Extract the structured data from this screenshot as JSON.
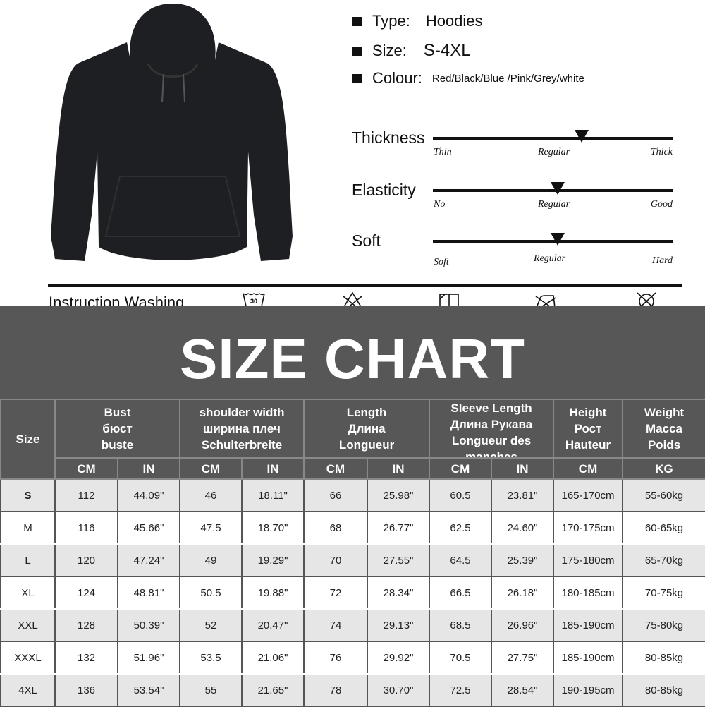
{
  "product": {
    "image": "black-hoodie"
  },
  "specs": [
    {
      "label": "Type:",
      "value": "Hoodies"
    },
    {
      "label": "Size:",
      "value": "S-4XL"
    },
    {
      "label": "Colour:",
      "value": "Red/Black/Blue /Pink/Grey/white"
    }
  ],
  "ratings": [
    {
      "label": "Thickness",
      "low": "Thin",
      "mid": "Regular",
      "high": "Thick",
      "level_percent": 62
    },
    {
      "label": "Elasticity",
      "low": "No",
      "mid": "Regular",
      "high": "Good",
      "level_percent": 52
    },
    {
      "label": "Soft",
      "low": "Soft",
      "mid": "Regular",
      "high": "Hard",
      "level_percent": 52
    }
  ],
  "washing": {
    "label": "Instruction Washing",
    "icons": [
      "wash-30-icon",
      "no-bleach-icon",
      "dry-flat-icon",
      "no-iron-icon",
      "no-tumble-dry-icon"
    ],
    "wash_temp": "30"
  },
  "size_chart": {
    "title": "SIZE CHART",
    "size_header": "Size",
    "groups": [
      {
        "lines": [
          "Bust",
          "бюст",
          "buste"
        ]
      },
      {
        "lines": [
          "shoulder width",
          "ширина плеч",
          "Schulterbreite"
        ]
      },
      {
        "lines": [
          "Length",
          "Длина",
          "Longueur"
        ]
      },
      {
        "lines": [
          "Sleeve Length",
          "Длина Рукава",
          "Longueur des",
          "manches"
        ]
      },
      {
        "lines": [
          "Height",
          "Рост",
          "Hauteur"
        ]
      },
      {
        "lines": [
          "Weight",
          "Macca",
          "Poids"
        ]
      }
    ],
    "units": [
      "CM",
      "IN",
      "CM",
      "IN",
      "CM",
      "IN",
      "CM",
      "IN",
      "CM",
      "KG"
    ],
    "rows": [
      [
        "S",
        "112",
        "44.09\"",
        "46",
        "18.11\"",
        "66",
        "25.98\"",
        "60.5",
        "23.81\"",
        "165-170cm",
        "55-60kg"
      ],
      [
        "M",
        "116",
        "45.66\"",
        "47.5",
        "18.70\"",
        "68",
        "26.77\"",
        "62.5",
        "24.60\"",
        "170-175cm",
        "60-65kg"
      ],
      [
        "L",
        "120",
        "47.24\"",
        "49",
        "19.29\"",
        "70",
        "27.55\"",
        "64.5",
        "25.39\"",
        "175-180cm",
        "65-70kg"
      ],
      [
        "XL",
        "124",
        "48.81\"",
        "50.5",
        "19.88\"",
        "72",
        "28.34\"",
        "66.5",
        "26.18\"",
        "180-185cm",
        "70-75kg"
      ],
      [
        "XXL",
        "128",
        "50.39\"",
        "52",
        "20.47\"",
        "74",
        "29.13\"",
        "68.5",
        "26.96\"",
        "185-190cm",
        "75-80kg"
      ],
      [
        "XXXL",
        "132",
        "51.96\"",
        "53.5",
        "21.06\"",
        "76",
        "29.92\"",
        "70.5",
        "27.75\"",
        "185-190cm",
        "80-85kg"
      ],
      [
        "4XL",
        "136",
        "53.54\"",
        "55",
        "21.65\"",
        "78",
        "30.70\"",
        "72.5",
        "28.54\"",
        "190-195cm",
        "80-85kg"
      ]
    ]
  }
}
